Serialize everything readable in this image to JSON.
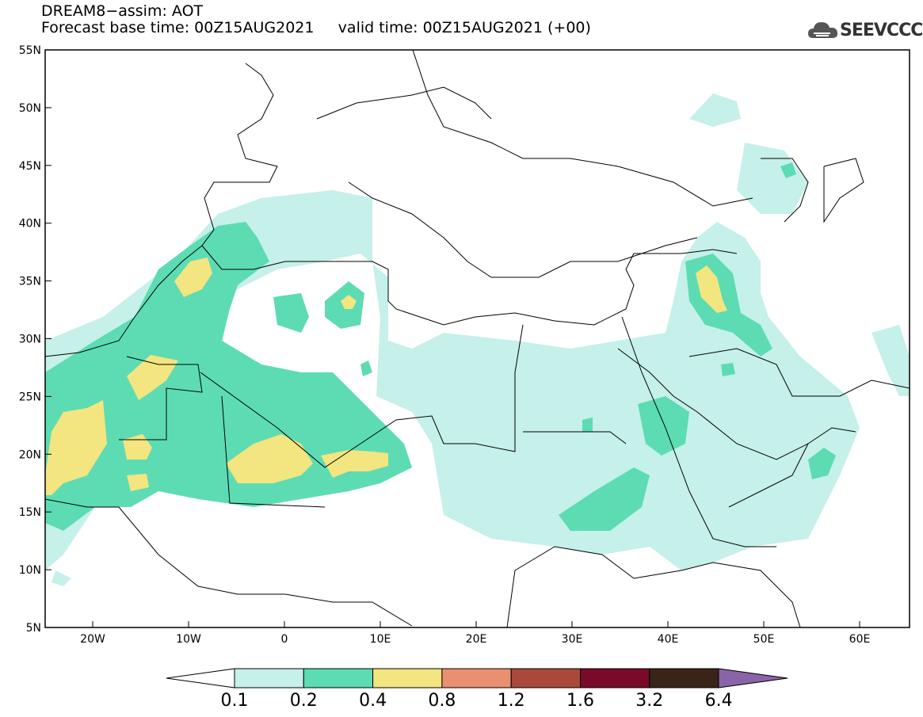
{
  "title_line1": "DREAM8−assim: AOT",
  "title_line2": "Forecast base time: 00Z15AUG2021     valid time: 00Z15AUG2021 (+00)",
  "logo_text": "SEEVCCC",
  "logo_icon": "cloud-icon",
  "lat_labels": [
    "55N",
    "50N",
    "45N",
    "40N",
    "35N",
    "30N",
    "25N",
    "20N",
    "15N",
    "10N",
    "5N"
  ],
  "lon_labels": [
    "20W",
    "10W",
    "0",
    "10E",
    "20E",
    "30E",
    "40E",
    "50E",
    "60E"
  ],
  "colorbar": {
    "bins": [
      {
        "color": "#c6f0ea"
      },
      {
        "color": "#5ddcb4"
      },
      {
        "color": "#f3e580"
      },
      {
        "color": "#e99070"
      },
      {
        "color": "#a8493a"
      },
      {
        "color": "#7a0a2a"
      },
      {
        "color": "#3a2418"
      },
      {
        "color": "#8a64a8"
      }
    ],
    "labels": [
      "0.1",
      "0.2",
      "0.4",
      "0.8",
      "1.2",
      "1.6",
      "3.2",
      "6.4"
    ]
  },
  "colors": {
    "low": "#c6f0ea",
    "mid": "#5ddcb4",
    "high": "#f3e580"
  }
}
